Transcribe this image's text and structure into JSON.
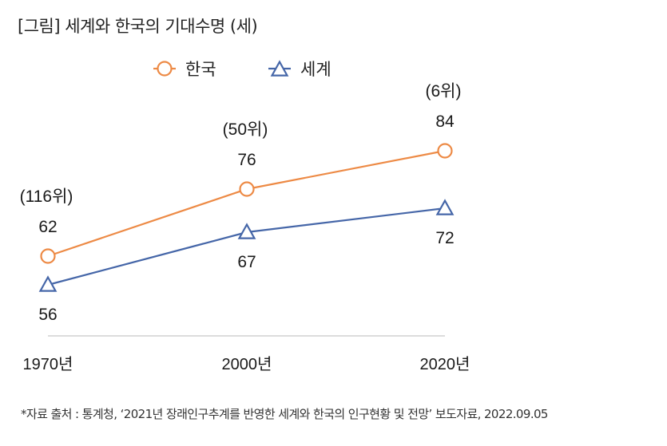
{
  "title": "[그림] 세계와 한국의 기대수명 (세)",
  "source": "*자료 출처 : 통계청, ‘2021년 장래인구추계를 반영한 세계와 한국의 인구현황 및 전망’ 보도자료, 2022.09.05",
  "chart_data": {
    "type": "line",
    "title": "[그림] 세계와 한국의 기대수명 (세)",
    "xlabel": "",
    "ylabel": "",
    "categories": [
      "1970년",
      "2000년",
      "2020년"
    ],
    "series": [
      {
        "name": "한국",
        "values": [
          62,
          76,
          84
        ],
        "color": "#ed8a45",
        "marker": "circle",
        "annotations": [
          "(116위)",
          "(50위)",
          "(6위)"
        ],
        "label_position": "above"
      },
      {
        "name": "세계",
        "values": [
          56,
          67,
          72
        ],
        "color": "#4566a8",
        "marker": "triangle",
        "annotations": [
          "",
          "",
          ""
        ],
        "label_position": "below"
      }
    ],
    "legend": {
      "position": "top",
      "entries": [
        "한국",
        "세계"
      ]
    },
    "grid": false,
    "y_axis_visible": false
  }
}
